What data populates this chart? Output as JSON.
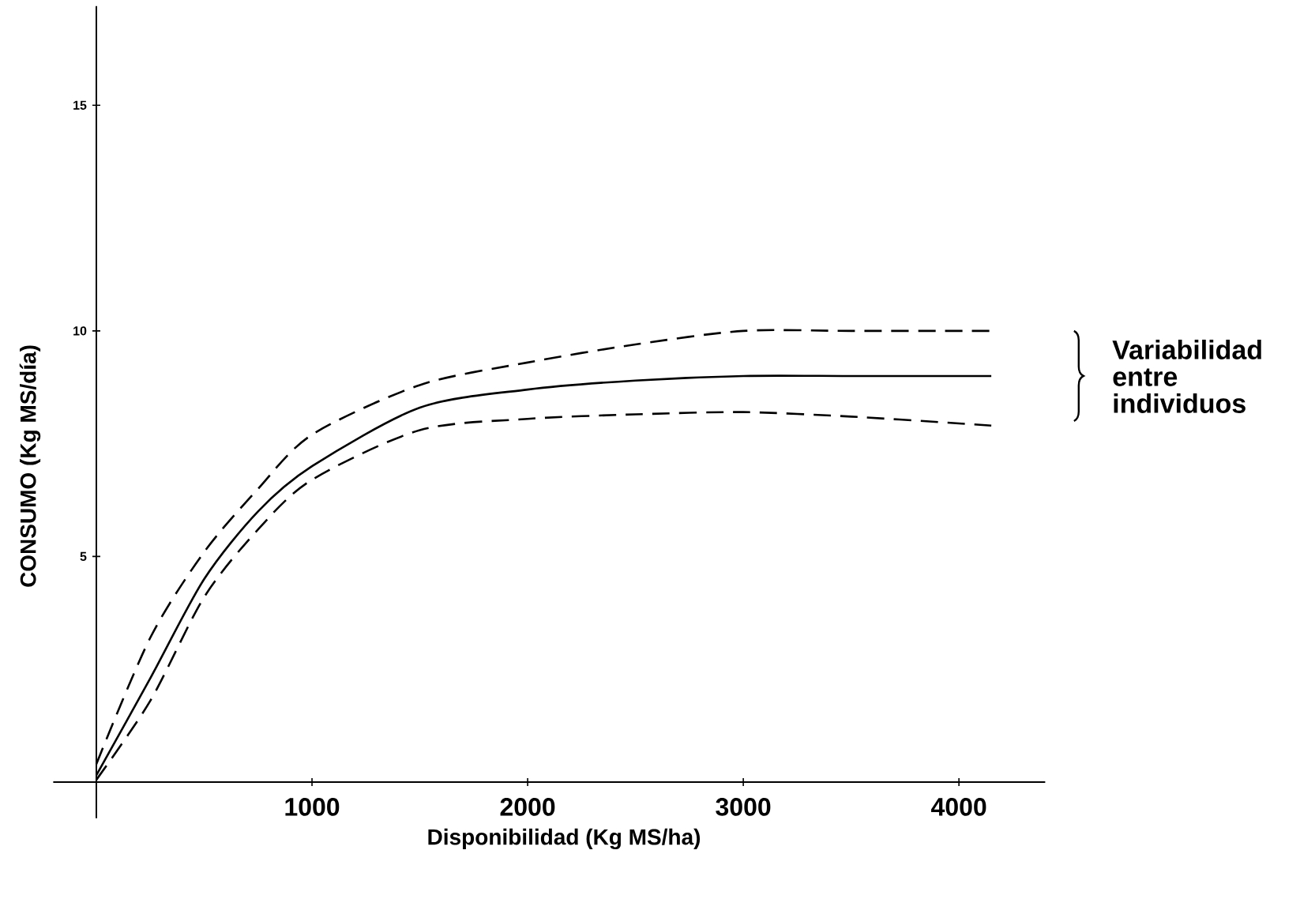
{
  "chart_data": {
    "type": "line",
    "xlabel": "Disponibilidad (Kg MS/ha)",
    "ylabel": "CONSUMO  (Kg MS/día)",
    "x": [
      0,
      250,
      500,
      750,
      1000,
      1500,
      2000,
      2500,
      3000,
      3500,
      4000,
      4150
    ],
    "series": [
      {
        "color": "#000000",
        "line_style": "dashed",
        "values": [
          0.4,
          3.2,
          5.1,
          6.5,
          7.7,
          8.8,
          9.3,
          9.7,
          10.0,
          10.0,
          10.0,
          10.0
        ]
      },
      {
        "color": "#000000",
        "line_style": "solid",
        "values": [
          0.15,
          2.3,
          4.5,
          6.0,
          7.0,
          8.3,
          8.7,
          8.9,
          9.0,
          9.0,
          9.0,
          9.0
        ]
      },
      {
        "color": "#000000",
        "line_style": "dashed",
        "values": [
          0.05,
          1.8,
          4.1,
          5.6,
          6.7,
          7.8,
          8.05,
          8.15,
          8.2,
          8.1,
          7.95,
          7.9
        ]
      }
    ],
    "xlim": [
      -200,
      4400
    ],
    "ylim": [
      -0.8,
      17.2
    ],
    "xticks": [
      1000,
      2000,
      3000,
      4000
    ],
    "yticks": [
      5,
      10,
      15
    ],
    "annotations": [
      "Variabilidad entre individuos"
    ],
    "grid": false,
    "marker": "none"
  }
}
